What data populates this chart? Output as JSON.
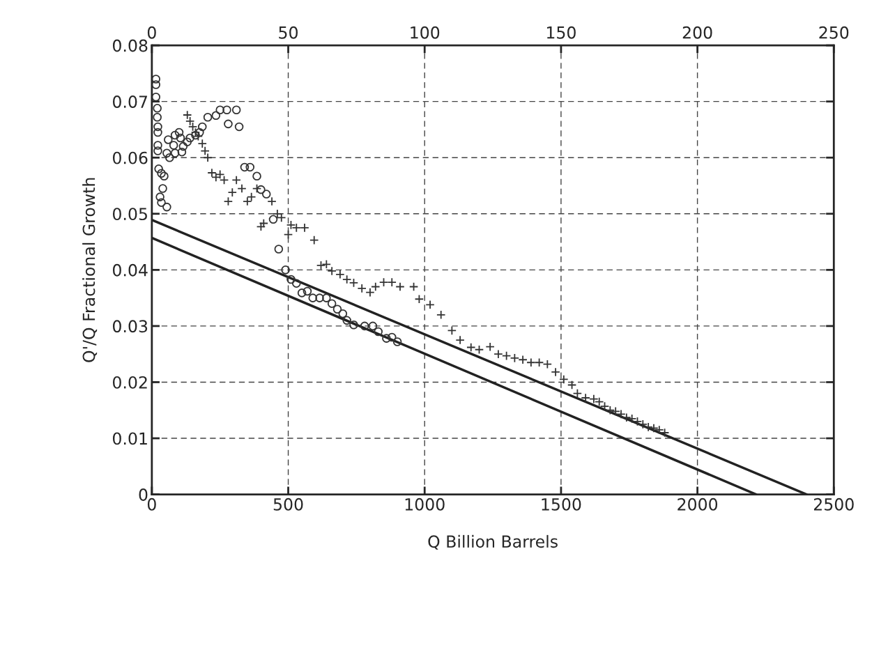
{
  "chart_data": {
    "type": "scatter",
    "xlabel": "Q Billion Barrels",
    "ylabel": "Q'/Q Fractional Growth",
    "xlim": [
      0,
      2500
    ],
    "xticks": [
      0,
      500,
      1000,
      1500,
      2000,
      2500
    ],
    "ylim": [
      0,
      0.08
    ],
    "yticks": [
      0,
      0.01,
      0.02,
      0.03,
      0.04,
      0.05,
      0.06,
      0.07,
      0.08
    ],
    "x2lim": [
      0,
      250
    ],
    "x2ticks": [
      0,
      50,
      100,
      150,
      200,
      250
    ],
    "grid": true,
    "series": [
      {
        "marker": "circle",
        "color": "#333333",
        "x": [
          15,
          15,
          15,
          20,
          20,
          22,
          22,
          22,
          22,
          25,
          35,
          45,
          40,
          30,
          35,
          55,
          55,
          65,
          60,
          80,
          85,
          85,
          100,
          105,
          110,
          115,
          130,
          140,
          160,
          175,
          185,
          205,
          235,
          250,
          275,
          280,
          310,
          320,
          340,
          360,
          385,
          400,
          420,
          445,
          465,
          490,
          510,
          530,
          550,
          570,
          590,
          615,
          640,
          660,
          680,
          700,
          715,
          740,
          780,
          810,
          830,
          860,
          880,
          900
        ],
        "values": [
          0.074,
          0.073,
          0.0708,
          0.0688,
          0.0672,
          0.0655,
          0.0645,
          0.0622,
          0.0612,
          0.058,
          0.0572,
          0.0567,
          0.0545,
          0.053,
          0.052,
          0.0512,
          0.0608,
          0.06,
          0.0632,
          0.0622,
          0.0608,
          0.064,
          0.0645,
          0.0635,
          0.061,
          0.062,
          0.0628,
          0.0635,
          0.064,
          0.0645,
          0.0655,
          0.0672,
          0.0675,
          0.0685,
          0.0685,
          0.066,
          0.0685,
          0.0655,
          0.0583,
          0.0583,
          0.0567,
          0.0543,
          0.0535,
          0.049,
          0.0437,
          0.04,
          0.0383,
          0.0376,
          0.0359,
          0.0362,
          0.035,
          0.035,
          0.035,
          0.034,
          0.033,
          0.0322,
          0.031,
          0.0302,
          0.03,
          0.03,
          0.029,
          0.0278,
          0.028,
          0.0272
        ]
      },
      {
        "marker": "cross",
        "color": "#333333",
        "x": [
          130,
          140,
          150,
          160,
          170,
          185,
          195,
          205,
          220,
          235,
          250,
          265,
          280,
          295,
          310,
          330,
          350,
          365,
          385,
          400,
          410,
          440,
          460,
          475,
          500,
          510,
          530,
          560,
          595,
          620,
          640,
          660,
          690,
          715,
          740,
          770,
          800,
          820,
          850,
          880,
          910,
          960,
          980,
          1020,
          1060,
          1100,
          1130,
          1170,
          1200,
          1240,
          1270,
          1300,
          1330,
          1360,
          1390,
          1420,
          1450,
          1480,
          1510,
          1540,
          1560,
          1590,
          1620,
          1640,
          1660,
          1680,
          1700,
          1720,
          1740,
          1760,
          1780,
          1800,
          1820,
          1840,
          1860,
          1880
        ],
        "values": [
          0.0676,
          0.0665,
          0.0655,
          0.0645,
          0.0638,
          0.0625,
          0.0612,
          0.06,
          0.0573,
          0.0565,
          0.057,
          0.056,
          0.0522,
          0.0538,
          0.056,
          0.0545,
          0.0522,
          0.053,
          0.0545,
          0.0477,
          0.0483,
          0.0522,
          0.05,
          0.0493,
          0.0463,
          0.048,
          0.0475,
          0.0475,
          0.0453,
          0.0408,
          0.041,
          0.0398,
          0.0392,
          0.0383,
          0.0377,
          0.0367,
          0.036,
          0.037,
          0.0378,
          0.0378,
          0.037,
          0.037,
          0.0348,
          0.0338,
          0.032,
          0.0292,
          0.0275,
          0.0262,
          0.0258,
          0.0263,
          0.025,
          0.0247,
          0.0243,
          0.024,
          0.0235,
          0.0235,
          0.0232,
          0.0218,
          0.0205,
          0.0195,
          0.018,
          0.0172,
          0.017,
          0.0165,
          0.0157,
          0.015,
          0.0148,
          0.0143,
          0.0137,
          0.0135,
          0.013,
          0.0125,
          0.012,
          0.0118,
          0.0115,
          0.011
        ]
      },
      {
        "type": "line",
        "marker": "none",
        "line_style": "solid",
        "color": "#222222",
        "x": [
          0,
          2400
        ],
        "values": [
          0.0489,
          0
        ]
      },
      {
        "type": "line",
        "marker": "none",
        "line_style": "solid",
        "color": "#222222",
        "x": [
          0,
          2215
        ],
        "values": [
          0.0457,
          0
        ]
      }
    ]
  }
}
